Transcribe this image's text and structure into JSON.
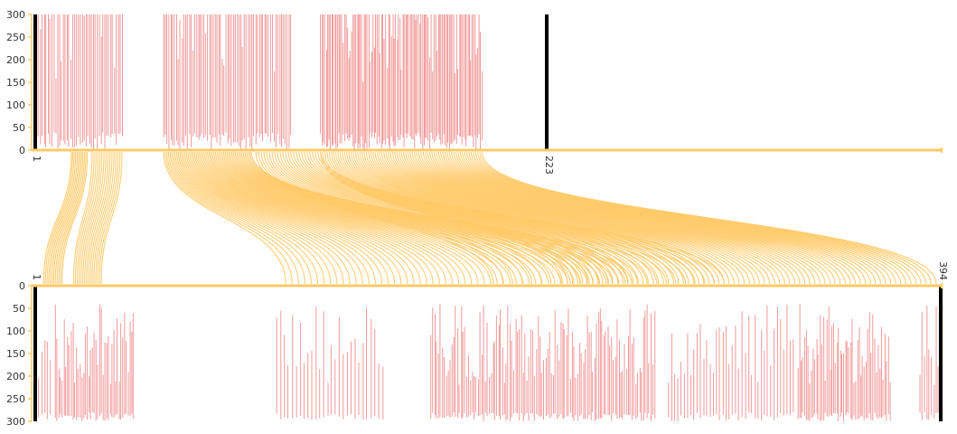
{
  "colors": {
    "axis": "#ffc966",
    "link": "#ffc966",
    "stem": "#f29a9a",
    "endcap": "#000000"
  },
  "chart_data": {
    "type": "alignment",
    "value_axis": {
      "min": 0,
      "max": 300,
      "ticks": [
        0,
        50,
        100,
        150,
        200,
        250,
        300
      ]
    },
    "top_track": {
      "label_start": "1",
      "label_end": "223",
      "bar_clusters": [
        {
          "from": 2,
          "to": 39,
          "count": 46
        },
        {
          "from": 57,
          "to": 112,
          "count": 70
        },
        {
          "from": 125,
          "to": 195,
          "count": 115
        }
      ]
    },
    "bottom_track": {
      "label_start": "1",
      "label_end": "394",
      "bar_clusters": [
        {
          "from": 3,
          "to": 8,
          "count": 5
        },
        {
          "from": 10,
          "to": 44,
          "count": 45
        },
        {
          "from": 106,
          "to": 152,
          "count": 28
        },
        {
          "from": 173,
          "to": 270,
          "count": 120
        },
        {
          "from": 276,
          "to": 330,
          "count": 40
        },
        {
          "from": 332,
          "to": 372,
          "count": 55
        },
        {
          "from": 385,
          "to": 393,
          "count": 9
        }
      ]
    },
    "link_segments": [
      {
        "top_from": 17,
        "top_to": 24,
        "bottom_from": 5,
        "bottom_to": 13,
        "count": 12
      },
      {
        "top_from": 26,
        "top_to": 39,
        "bottom_from": 18,
        "bottom_to": 30,
        "count": 16
      },
      {
        "top_from": 57,
        "top_to": 95,
        "bottom_from": 110,
        "bottom_to": 260,
        "count": 55
      },
      {
        "top_from": 97,
        "top_to": 125,
        "bottom_from": 200,
        "bottom_to": 300,
        "count": 25
      },
      {
        "top_from": 125,
        "top_to": 195,
        "bottom_from": 230,
        "bottom_to": 392,
        "count": 75
      }
    ]
  }
}
